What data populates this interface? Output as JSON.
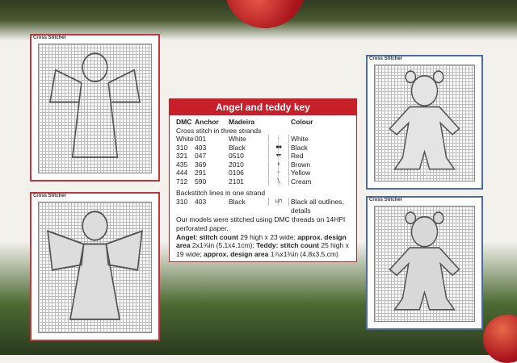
{
  "key": {
    "title": "Angel and teddy key",
    "headers": [
      "DMC",
      "Anchor",
      "Madeira",
      "",
      "Colour"
    ],
    "section1": "Cross stitch in three strands",
    "rows": [
      {
        "dmc": "White",
        "anchor": "001",
        "madeira": "White",
        "symbol": "·",
        "colour": "White"
      },
      {
        "dmc": "310",
        "anchor": "403",
        "madeira": "Black",
        "symbol": "■■",
        "colour": "Black"
      },
      {
        "dmc": "321",
        "anchor": "047",
        "madeira": "0510",
        "symbol": "▾▾",
        "colour": "Red"
      },
      {
        "dmc": "435",
        "anchor": "369",
        "madeira": "2010",
        "symbol": "ıı",
        "colour": "Brown"
      },
      {
        "dmc": "444",
        "anchor": "291",
        "madeira": "0106",
        "symbol": "◦◦",
        "colour": "Yellow"
      },
      {
        "dmc": "712",
        "anchor": "590",
        "madeira": "2101",
        "symbol": "╲",
        "colour": "Cream"
      }
    ],
    "section2": "Backstitch lines in one strand",
    "backstitch": {
      "dmc": "310",
      "anchor": "403",
      "madeira": "Black",
      "symbol": "⊔⊓",
      "colour": "Black all outlines, details"
    },
    "note": "Our models were stitched using DMC threads on 14HPI perforated paper.",
    "angel_label1": "Angel: stitch count",
    "angel_text1": " 29 high x 23 wide; ",
    "angel_label2": "approx. design area",
    "angel_text2": " 2x1⅝in (5.1x4.1cm); ",
    "teddy_label1": "Teddy: stitch count",
    "teddy_text1": " 25 high x 19 wide; ",
    "teddy_label2": "approx. design area",
    "teddy_text2": " 1⅞x1⅜in (4.8x3.5.cm)"
  },
  "charts": [
    {
      "label": "Cross Stitcher",
      "subject": "angel",
      "border": "#c8323a"
    },
    {
      "label": "Cross Stitcher",
      "subject": "angel",
      "border": "#c8323a"
    },
    {
      "label": "Cross Stitcher",
      "subject": "teddy",
      "border": "#4a6aa8"
    },
    {
      "label": "Cross Stitcher",
      "subject": "teddy",
      "border": "#4a6aa8"
    }
  ]
}
